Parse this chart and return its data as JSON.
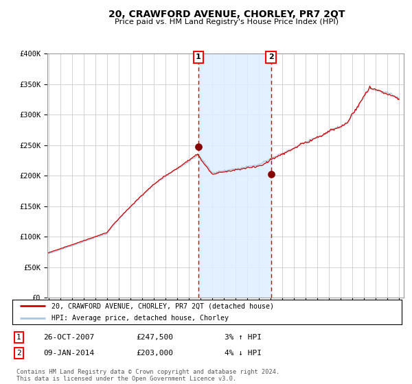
{
  "title": "20, CRAWFORD AVENUE, CHORLEY, PR7 2QT",
  "subtitle": "Price paid vs. HM Land Registry's House Price Index (HPI)",
  "ylabel_values": [
    0,
    50000,
    100000,
    150000,
    200000,
    250000,
    300000,
    350000,
    400000
  ],
  "ylabel_labels": [
    "£0",
    "£50K",
    "£100K",
    "£150K",
    "£200K",
    "£250K",
    "£300K",
    "£350K",
    "£400K"
  ],
  "sale1_date": 2007.82,
  "sale1_price": 247500,
  "sale1_label": "1",
  "sale2_date": 2014.03,
  "sale2_price": 203000,
  "sale2_label": "2",
  "hpi_line_color": "#aac4e0",
  "price_line_color": "#cc0000",
  "sale_marker_color": "#880000",
  "vline_color": "#cc0000",
  "shaded_color": "#ddeeff",
  "background_color": "#ffffff",
  "grid_color": "#cccccc",
  "legend_line1": "20, CRAWFORD AVENUE, CHORLEY, PR7 2QT (detached house)",
  "legend_line2": "HPI: Average price, detached house, Chorley",
  "table_row1_num": "1",
  "table_row1_date": "26-OCT-2007",
  "table_row1_price": "£247,500",
  "table_row1_hpi": "3% ↑ HPI",
  "table_row2_num": "2",
  "table_row2_date": "09-JAN-2014",
  "table_row2_price": "£203,000",
  "table_row2_hpi": "4% ↓ HPI",
  "footnote": "Contains HM Land Registry data © Crown copyright and database right 2024.\nThis data is licensed under the Open Government Licence v3.0.",
  "ylim": [
    0,
    400000
  ],
  "xlim_start": 1994.9,
  "xlim_end": 2025.4
}
